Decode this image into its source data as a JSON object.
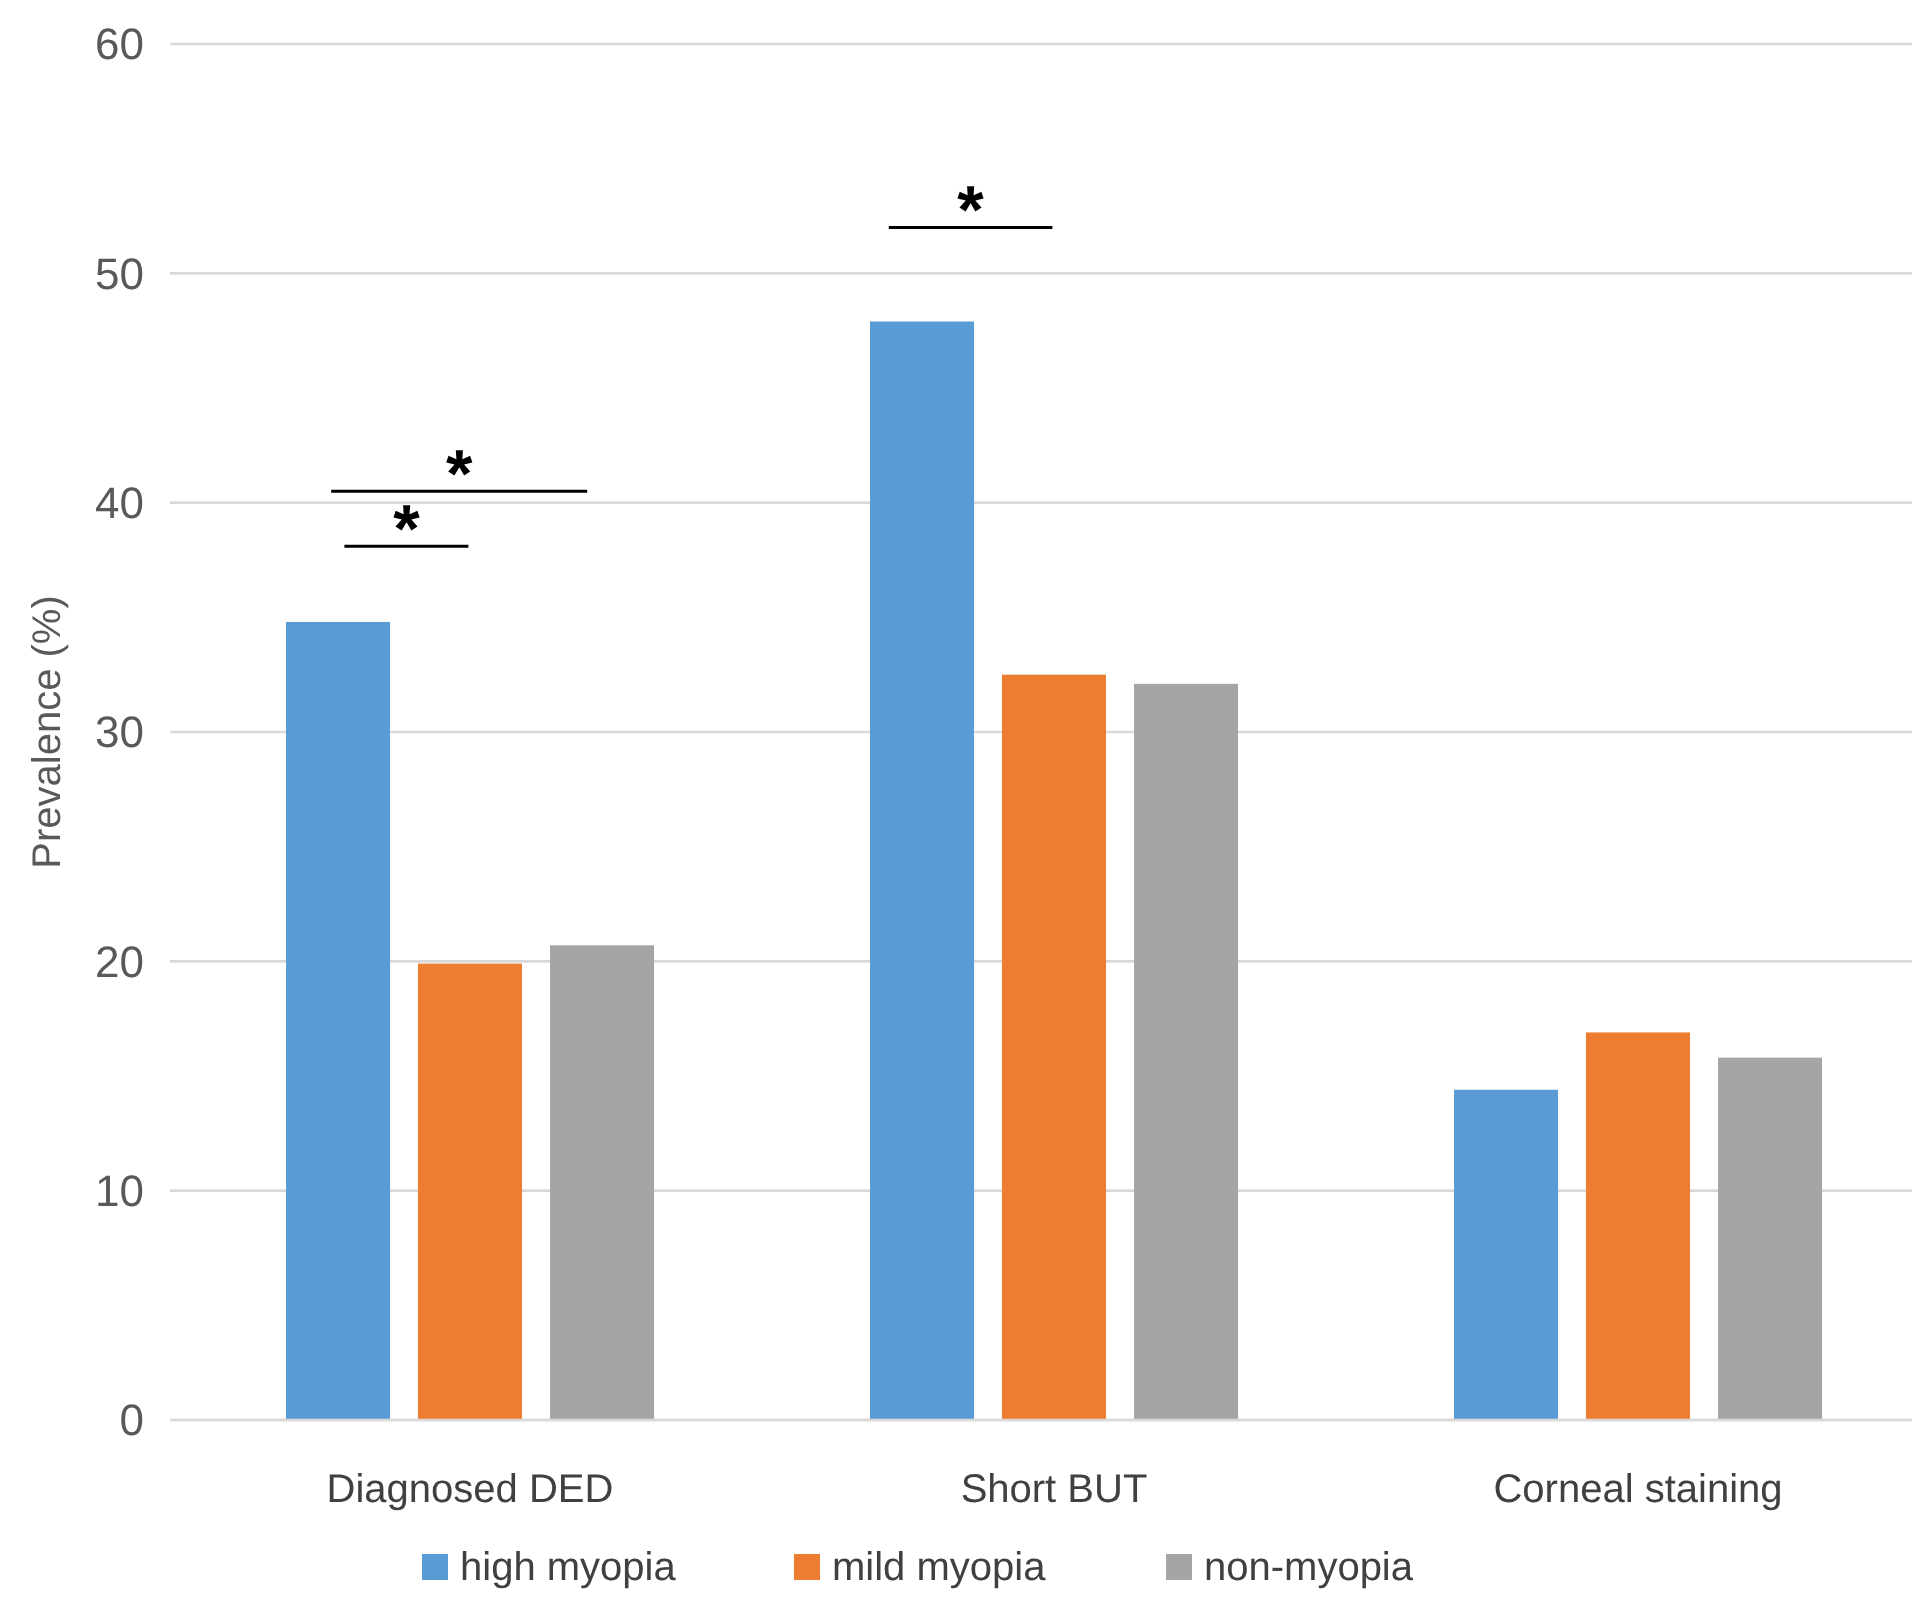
{
  "chart_data": {
    "type": "bar",
    "ylabel": "Prevalence (%)",
    "categories": [
      "Diagnosed DED",
      "Short BUT",
      "Corneal staining"
    ],
    "series": [
      {
        "name": "high myopia",
        "color": "#5b9bd5",
        "values": [
          34.8,
          47.9,
          14.4
        ]
      },
      {
        "name": "mild myopia",
        "color": "#ed7d31",
        "values": [
          19.9,
          32.5,
          16.9
        ]
      },
      {
        "name": "non-myopia",
        "color": "#a5a5a5",
        "values": [
          20.7,
          32.1,
          15.8
        ]
      }
    ],
    "ylim": [
      0,
      60
    ],
    "yticks": [
      0,
      10,
      20,
      30,
      40,
      50,
      60
    ],
    "grid": "y",
    "legend": "bottom",
    "annotations": [
      "*",
      "*",
      "*"
    ]
  }
}
